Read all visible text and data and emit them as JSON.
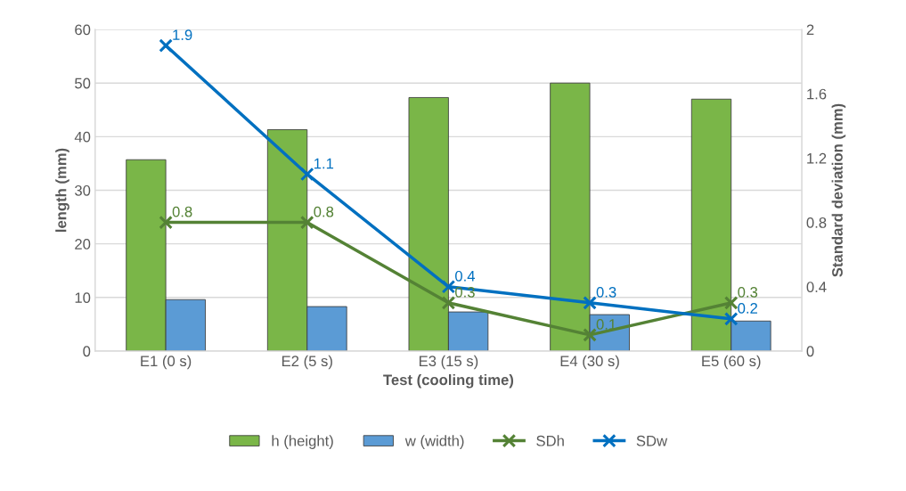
{
  "chart_data": {
    "type": "bar",
    "xlabel": "Test (cooling time)",
    "ylabel": "length (mm)",
    "y2label": "Standard deviation (mm)",
    "categories": [
      "E1 (0 s)",
      "E2 (5 s)",
      "E3 (15 s)",
      "E4 (30 s)",
      "E5 (60 s)"
    ],
    "series": [
      {
        "name": "h (height)",
        "color": "#7ab648",
        "values": [
          35.7,
          41.3,
          47.3,
          50,
          47
        ]
      },
      {
        "name": "w (width)",
        "color": "#5b9bd5",
        "values": [
          9.6,
          8.3,
          7.3,
          6.8,
          5.6
        ]
      },
      {
        "name": "SDh",
        "type": "line",
        "axis": "y2",
        "color": "#548235",
        "marker": "cross",
        "values": [
          0.8,
          0.8,
          0.3,
          0.1,
          0.3
        ],
        "value_labels": [
          "0.8",
          "0.8",
          "0.3",
          "0.1",
          "0.3"
        ]
      },
      {
        "name": "SDw",
        "type": "line",
        "axis": "y2",
        "color": "#0070c0",
        "marker": "cross",
        "values": [
          1.9,
          1.1,
          0.4,
          0.3,
          0.2
        ],
        "value_labels": [
          "1.9",
          "1.1",
          "0.4",
          "0.3",
          "0.2"
        ]
      }
    ],
    "ylim": [
      0,
      60
    ],
    "yticks": [
      0,
      10,
      20,
      30,
      40,
      50,
      60
    ],
    "y2lim": [
      0,
      2
    ],
    "y2ticks": [
      0,
      0.4,
      0.8,
      1.2,
      1.6,
      2
    ],
    "grid": "y",
    "legend": "bottom"
  }
}
